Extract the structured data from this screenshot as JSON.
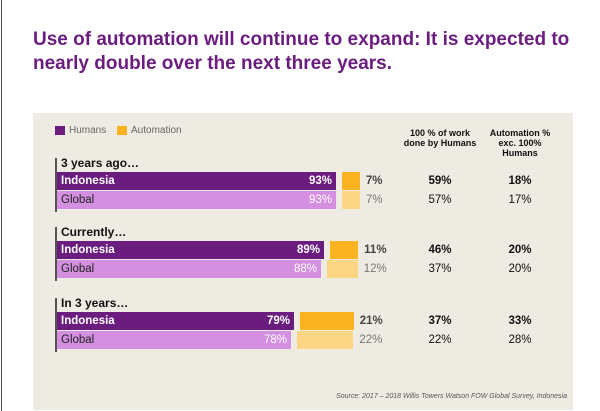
{
  "title": "Use of automation will continue to expand: It is expected to nearly double over the next three years.",
  "legend": [
    {
      "label": "Humans",
      "color": "#6b1d7f"
    },
    {
      "label": "Automation",
      "color": "#fbb321"
    }
  ],
  "column_headers": [
    "100 % of work done by Humans",
    "Automation % exc. 100% Humans"
  ],
  "source": "Source: 2017 – 2018 Willis Towers Watson FOW Global Survey, Indonesia",
  "chart_data": {
    "type": "bar",
    "orientation": "horizontal",
    "stacking": "humans bar followed by automation bar",
    "groups": [
      {
        "label": "3 years ago…",
        "rows": [
          {
            "name": "Indonesia",
            "humans_pct": 93,
            "automation_pct": 7,
            "humans_label": "93%",
            "automation_label": "7%",
            "full_human": "59%",
            "automation_exc": "18%",
            "bold": true
          },
          {
            "name": "Global",
            "humans_pct": 93,
            "automation_pct": 7,
            "humans_label": "93%",
            "automation_label": "7%",
            "full_human": "57%",
            "automation_exc": "17%",
            "bold": false
          }
        ]
      },
      {
        "label": "Currently…",
        "rows": [
          {
            "name": "Indonesia",
            "humans_pct": 89,
            "automation_pct": 11,
            "humans_label": "89%",
            "automation_label": "11%",
            "full_human": "46%",
            "automation_exc": "20%",
            "bold": true
          },
          {
            "name": "Global",
            "humans_pct": 88,
            "automation_pct": 12,
            "humans_label": "88%",
            "automation_label": "12%",
            "full_human": "37%",
            "automation_exc": "20%",
            "bold": false
          }
        ]
      },
      {
        "label": "In 3 years…",
        "rows": [
          {
            "name": "Indonesia",
            "humans_pct": 79,
            "automation_pct": 21,
            "humans_label": "79%",
            "automation_label": "21%",
            "full_human": "37%",
            "automation_exc": "33%",
            "bold": true
          },
          {
            "name": "Global",
            "humans_pct": 78,
            "automation_pct": 22,
            "humans_label": "78%",
            "automation_label": "22%",
            "full_human": "22%",
            "automation_exc": "28%",
            "bold": false
          }
        ]
      }
    ],
    "colors": {
      "indonesia_humans": "#6b1d7f",
      "global_humans": "#d48fe0",
      "indonesia_automation": "#fbb321",
      "global_automation": "#fdd683"
    }
  }
}
